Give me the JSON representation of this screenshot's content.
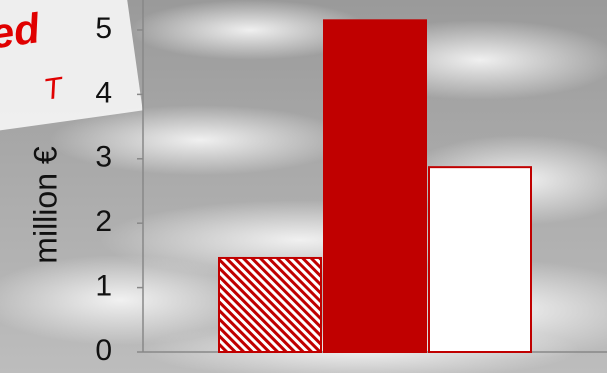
{
  "chart_data": {
    "type": "bar",
    "y_label": "million €",
    "annotations": [
      "ed",
      "T"
    ],
    "categories": [
      null,
      null,
      null
    ],
    "values": [
      1.46,
      5.15,
      2.87
    ],
    "styles": [
      "hatched",
      "solid",
      "outline"
    ],
    "color": "#c00000",
    "ylim": [
      0,
      5.45
    ],
    "yticks": [
      0,
      1,
      2,
      3,
      4,
      5
    ]
  }
}
